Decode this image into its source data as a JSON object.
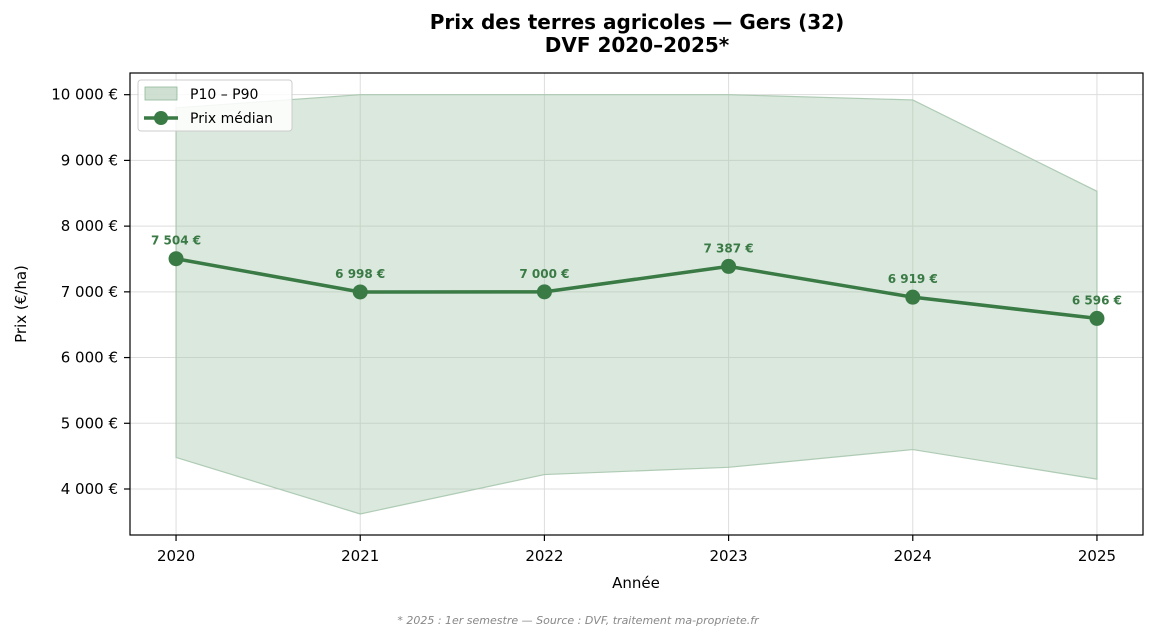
{
  "chart_data": {
    "type": "line",
    "title_line1": "Prix des terres agricoles — Gers (32)",
    "title_line2": "DVF 2020–2025*",
    "xlabel": "Année",
    "ylabel": "Prix (€/ha)",
    "x": [
      2020,
      2021,
      2022,
      2023,
      2024,
      2025
    ],
    "x_tick_labels": [
      "2020",
      "2021",
      "2022",
      "2023",
      "2024",
      "2025"
    ],
    "xlim": [
      2019.75,
      2025.25
    ],
    "ylim": [
      3300,
      10330
    ],
    "y_ticks": [
      4000,
      5000,
      6000,
      7000,
      8000,
      9000,
      10000
    ],
    "y_tick_labels": [
      "4 000 €",
      "5 000 €",
      "6 000 €",
      "7 000 €",
      "8 000 €",
      "9 000 €",
      "10 000 €"
    ],
    "grid": true,
    "legend_position": "top-left",
    "series": [
      {
        "name": "Prix médian",
        "kind": "line",
        "color": "#3a7a45",
        "values": [
          7504,
          6998,
          7000,
          7387,
          6919,
          6596
        ],
        "labels": [
          "7 504 €",
          "6 998 €",
          "7 000 €",
          "7 387 €",
          "6 919 €",
          "6 596 €"
        ]
      },
      {
        "name": "P10 – P90",
        "kind": "band",
        "color": "#a7c7ae",
        "lower": [
          4480,
          3620,
          4220,
          4330,
          4600,
          4150
        ],
        "upper": [
          9800,
          10000,
          10000,
          10000,
          9920,
          8530
        ]
      }
    ]
  },
  "footnote": "* 2025 : 1er semestre — Source : DVF, traitement ma-propriete.fr"
}
